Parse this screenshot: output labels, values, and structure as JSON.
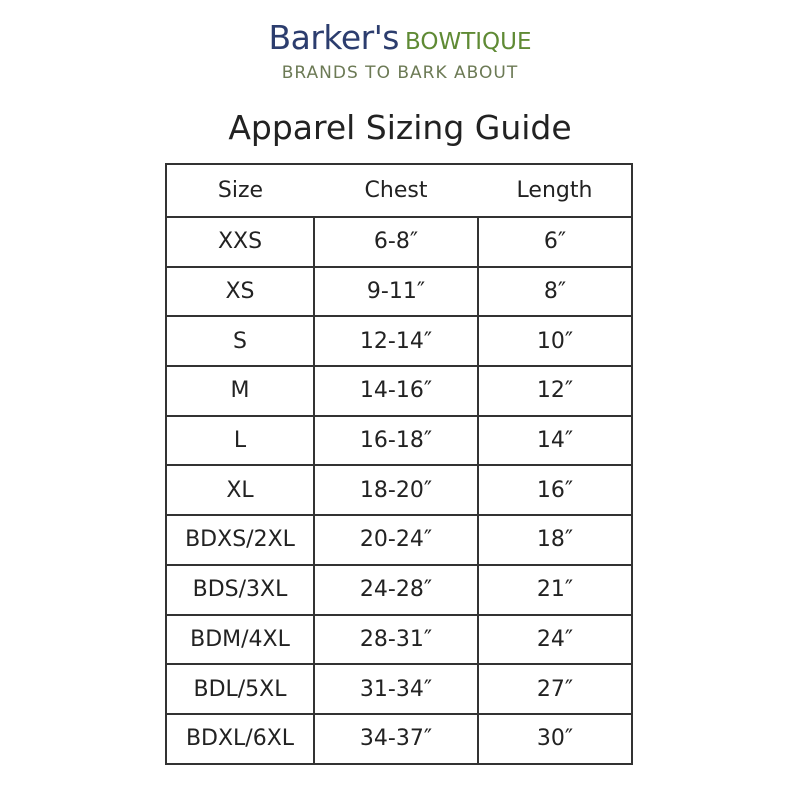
{
  "header": {
    "brand_name": "Barker's",
    "brand_suffix": "BOWTIQUE",
    "tagline": "BRANDS TO BARK ABOUT",
    "title": "Apparel Sizing Guide"
  },
  "table": {
    "columns": [
      "Size",
      "Chest",
      "Length"
    ],
    "rows": [
      [
        "XXS",
        "6-8″",
        "6″"
      ],
      [
        "XS",
        "9-11″",
        "8″"
      ],
      [
        "S",
        "12-14″",
        "10″"
      ],
      [
        "M",
        "14-16″",
        "12″"
      ],
      [
        "L",
        "16-18″",
        "14″"
      ],
      [
        "XL",
        "18-20″",
        "16″"
      ],
      [
        "BDXS/2XL",
        "20-24″",
        "18″"
      ],
      [
        "BDS/3XL",
        "24-28″",
        "21″"
      ],
      [
        "BDM/4XL",
        "28-31″",
        "24″"
      ],
      [
        "BDL/5XL",
        "31-34″",
        "27″"
      ],
      [
        "BDXL/6XL",
        "34-37″",
        "30″"
      ]
    ]
  }
}
